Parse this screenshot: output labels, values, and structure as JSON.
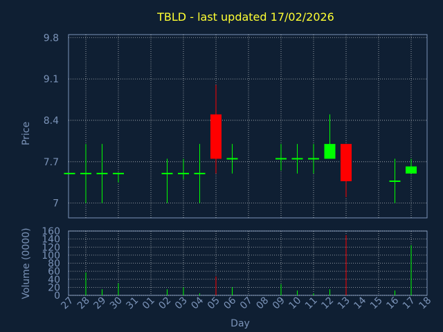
{
  "chart_data": [
    {
      "type": "candlestick",
      "title": "TBLD - last updated 17/02/2026",
      "xlabel": "",
      "ylabel": "Price",
      "ylim": [
        6.75,
        9.85
      ],
      "yticks": [
        "9.8",
        "9.1",
        "8.4",
        "7.7",
        "7"
      ],
      "ytick_values": [
        9.8,
        9.1,
        8.4,
        7.7,
        7.0
      ],
      "grid": true,
      "up_color": "#00ff00",
      "down_color": "#ff0000",
      "candles": [
        {
          "day": "27",
          "open": 7.5,
          "close": 7.5,
          "high": 7.5,
          "low": 7.5
        },
        {
          "day": "28",
          "open": 7.5,
          "close": 7.5,
          "high": 8.0,
          "low": 7.0
        },
        {
          "day": "29",
          "open": 7.5,
          "close": 7.5,
          "high": 8.0,
          "low": 7.0
        },
        {
          "day": "30",
          "open": 7.5,
          "close": 7.5,
          "high": 7.5,
          "low": 7.35
        },
        {
          "day": "02",
          "open": 7.5,
          "close": 7.5,
          "high": 7.75,
          "low": 7.0
        },
        {
          "day": "03",
          "open": 7.5,
          "close": 7.5,
          "high": 7.75,
          "low": 7.4
        },
        {
          "day": "04",
          "open": 7.5,
          "close": 7.5,
          "high": 8.0,
          "low": 7.0
        },
        {
          "day": "05",
          "open": 8.5,
          "close": 7.75,
          "high": 9.0,
          "low": 7.5
        },
        {
          "day": "06",
          "open": 7.75,
          "close": 7.75,
          "high": 8.0,
          "low": 7.5
        },
        {
          "day": "09",
          "open": 7.75,
          "close": 7.75,
          "high": 8.0,
          "low": 7.55
        },
        {
          "day": "10",
          "open": 7.75,
          "close": 7.75,
          "high": 8.0,
          "low": 7.5
        },
        {
          "day": "11",
          "open": 7.75,
          "close": 7.75,
          "high": 8.0,
          "low": 7.5
        },
        {
          "day": "12",
          "open": 7.75,
          "close": 8.0,
          "high": 8.5,
          "low": 7.75
        },
        {
          "day": "13",
          "open": 8.0,
          "close": 7.37,
          "high": 8.0,
          "low": 7.1
        },
        {
          "day": "16",
          "open": 7.37,
          "close": 7.37,
          "high": 7.75,
          "low": 7.0
        },
        {
          "day": "17",
          "open": 7.5,
          "close": 7.62,
          "high": 7.75,
          "low": 7.5
        }
      ]
    },
    {
      "type": "bar",
      "title": "",
      "xlabel": "Day",
      "ylabel": "Volume (0000)",
      "ylim": [
        0,
        160
      ],
      "yticks": [
        "160",
        "140",
        "120",
        "100",
        "80",
        "60",
        "40",
        "20",
        "0"
      ],
      "ytick_values": [
        160,
        140,
        120,
        100,
        80,
        60,
        40,
        20,
        0
      ],
      "categories": [
        "27",
        "28",
        "29",
        "30",
        "31",
        "01",
        "02",
        "03",
        "04",
        "05",
        "06",
        "07",
        "08",
        "09",
        "10",
        "11",
        "12",
        "13",
        "14",
        "15",
        "16",
        "17",
        "18"
      ],
      "values": [
        {
          "day": "28",
          "volume": 57,
          "color": "#00ff00"
        },
        {
          "day": "29",
          "volume": 15,
          "color": "#00ff00"
        },
        {
          "day": "30",
          "volume": 30,
          "color": "#00ff00"
        },
        {
          "day": "02",
          "volume": 15,
          "color": "#00ff00"
        },
        {
          "day": "03",
          "volume": 20,
          "color": "#00ff00"
        },
        {
          "day": "04",
          "volume": 5,
          "color": "#00ff00"
        },
        {
          "day": "05",
          "volume": 47,
          "color": "#ff0000"
        },
        {
          "day": "06",
          "volume": 20,
          "color": "#00ff00"
        },
        {
          "day": "09",
          "volume": 28,
          "color": "#00ff00"
        },
        {
          "day": "10",
          "volume": 12,
          "color": "#00ff00"
        },
        {
          "day": "11",
          "volume": 5,
          "color": "#00ff00"
        },
        {
          "day": "12",
          "volume": 15,
          "color": "#00ff00"
        },
        {
          "day": "13",
          "volume": 150,
          "color": "#ff0000"
        },
        {
          "day": "16",
          "volume": 12,
          "color": "#00ff00"
        },
        {
          "day": "17",
          "volume": 125,
          "color": "#00ff00"
        }
      ],
      "grid": true
    }
  ],
  "colors": {
    "background": "#0f1f33",
    "title": "#ffff33",
    "axis_text": "#7b93b8",
    "frame": "#7b93b8",
    "grid": "#ffffff"
  }
}
